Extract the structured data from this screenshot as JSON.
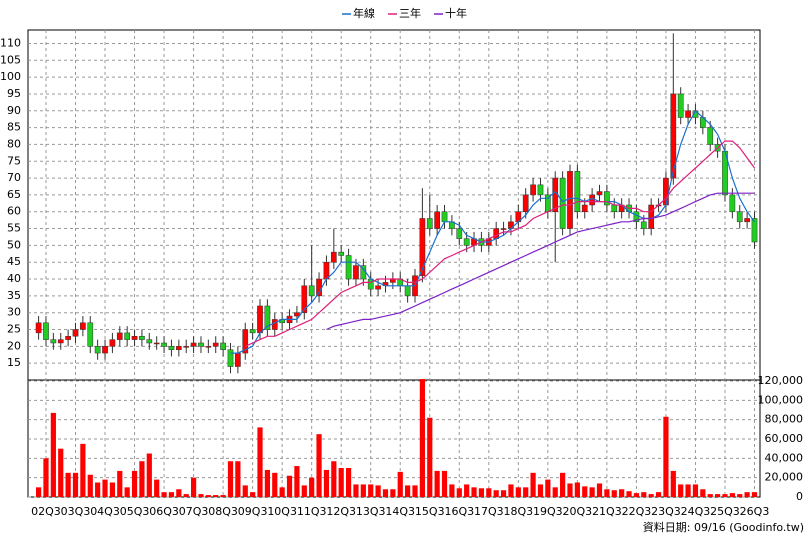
{
  "chart_data": {
    "type": "candlestick",
    "categories": [
      null,
      "02Q3",
      null,
      null,
      null,
      "03Q3",
      null,
      null,
      null,
      "04Q3",
      null,
      null,
      null,
      "05Q3",
      null,
      null,
      null,
      "06Q3",
      null,
      null,
      null,
      "07Q3",
      null,
      null,
      null,
      "08Q3",
      null,
      null,
      null,
      "09Q3",
      null,
      null,
      null,
      "10Q3",
      null,
      null,
      null,
      "11Q3",
      null,
      null,
      null,
      "12Q3",
      null,
      null,
      null,
      "13Q3",
      null,
      null,
      null,
      "14Q3",
      null,
      null,
      null,
      "15Q3",
      null,
      null,
      null,
      "16Q3",
      null,
      null,
      null,
      "17Q3",
      null,
      null,
      null,
      "18Q3",
      null,
      null,
      null,
      "19Q3",
      null,
      null,
      null,
      "20Q3",
      null,
      null,
      null,
      "21Q3",
      null,
      null,
      null,
      "22Q3",
      null,
      null,
      null,
      "23Q3",
      null,
      null,
      null,
      "24Q3",
      null,
      null,
      null,
      "25Q3",
      null,
      null,
      null,
      "26Q3"
    ],
    "open": [
      24,
      27,
      22,
      21,
      22,
      23,
      25,
      27,
      20,
      18,
      20,
      22,
      24,
      22,
      23,
      22,
      21,
      21,
      20,
      19,
      20,
      20,
      21,
      20,
      20,
      21,
      19,
      14,
      18,
      25,
      24,
      32,
      25,
      28,
      27,
      29,
      30,
      38,
      35,
      40,
      45,
      48,
      47,
      40,
      44,
      40,
      37,
      38,
      39,
      40,
      38,
      35,
      41,
      58,
      55,
      60,
      57,
      55,
      52,
      50,
      52,
      50,
      52,
      55,
      55,
      57,
      60,
      65,
      68,
      65,
      60,
      70,
      55,
      72,
      60,
      62,
      65,
      66,
      62,
      60,
      62,
      60,
      57,
      55,
      62,
      62,
      70,
      95,
      88,
      90,
      88,
      85,
      80,
      78,
      65,
      60,
      57,
      58
    ],
    "high": [
      29,
      29,
      24,
      24,
      25,
      27,
      29,
      29,
      22,
      22,
      24,
      26,
      26,
      25,
      25,
      24,
      23,
      23,
      22,
      22,
      22,
      23,
      23,
      22,
      23,
      23,
      21,
      20,
      27,
      27,
      34,
      34,
      30,
      30,
      31,
      32,
      40,
      50,
      42,
      47,
      55,
      50,
      49,
      46,
      46,
      42,
      40,
      41,
      42,
      42,
      40,
      43,
      67,
      65,
      62,
      62,
      59,
      57,
      54,
      54,
      54,
      54,
      57,
      57,
      59,
      62,
      67,
      70,
      70,
      67,
      72,
      72,
      74,
      74,
      64,
      67,
      68,
      68,
      64,
      64,
      64,
      62,
      59,
      64,
      64,
      72,
      113,
      97,
      92,
      92,
      90,
      87,
      82,
      80,
      67,
      62,
      60,
      60
    ],
    "low": [
      22,
      20,
      19,
      19,
      20,
      21,
      23,
      18,
      16,
      16,
      18,
      20,
      20,
      20,
      20,
      19,
      19,
      18,
      17,
      17,
      18,
      18,
      18,
      18,
      18,
      17,
      12,
      12,
      16,
      22,
      22,
      23,
      23,
      25,
      25,
      27,
      28,
      33,
      33,
      38,
      43,
      45,
      38,
      38,
      38,
      35,
      35,
      36,
      37,
      36,
      33,
      33,
      39,
      53,
      53,
      55,
      53,
      50,
      48,
      48,
      48,
      48,
      50,
      53,
      53,
      55,
      58,
      63,
      63,
      58,
      45,
      53,
      53,
      58,
      58,
      60,
      63,
      60,
      58,
      58,
      58,
      55,
      53,
      53,
      60,
      60,
      68,
      86,
      86,
      86,
      83,
      78,
      76,
      63,
      58,
      55,
      55,
      49
    ],
    "close": [
      27,
      22,
      21,
      22,
      23,
      25,
      27,
      20,
      18,
      20,
      22,
      24,
      22,
      23,
      22,
      21,
      21,
      20,
      19,
      20,
      20,
      21,
      20,
      20,
      21,
      19,
      14,
      18,
      25,
      24,
      32,
      25,
      28,
      27,
      29,
      30,
      38,
      35,
      40,
      45,
      48,
      47,
      40,
      44,
      40,
      37,
      38,
      39,
      40,
      38,
      35,
      41,
      58,
      55,
      60,
      57,
      55,
      52,
      50,
      52,
      50,
      52,
      55,
      55,
      57,
      60,
      65,
      68,
      65,
      60,
      70,
      55,
      72,
      60,
      62,
      65,
      66,
      62,
      60,
      62,
      60,
      57,
      55,
      62,
      62,
      70,
      95,
      88,
      90,
      88,
      85,
      80,
      78,
      65,
      60,
      57,
      58,
      51
    ],
    "up_color": "#ff0000",
    "down_color": "#22cc22",
    "series": [
      {
        "name": "年線",
        "color": "#1a6fd0",
        "values": [
          null,
          null,
          null,
          null,
          null,
          null,
          null,
          null,
          null,
          null,
          null,
          null,
          null,
          null,
          null,
          null,
          null,
          null,
          null,
          null,
          null,
          null,
          null,
          null,
          null,
          null,
          18,
          18,
          19,
          20,
          24,
          26,
          27,
          28,
          28,
          28,
          31,
          33,
          36,
          40,
          42,
          45,
          45,
          45,
          43,
          40,
          39,
          38,
          38,
          38,
          38,
          38,
          43,
          48,
          53,
          57,
          57,
          56,
          53,
          52,
          51,
          51,
          52,
          53,
          55,
          57,
          59,
          62,
          64,
          64,
          66,
          63,
          64,
          64,
          63,
          64,
          63,
          63,
          63,
          62,
          60,
          59,
          58,
          58,
          59,
          62,
          72,
          80,
          86,
          90,
          88,
          86,
          83,
          78,
          70,
          64,
          60,
          57
        ]
      },
      {
        "name": "三年",
        "color": "#e0207a",
        "values": [
          null,
          null,
          null,
          null,
          null,
          null,
          null,
          null,
          null,
          null,
          null,
          null,
          null,
          null,
          null,
          null,
          null,
          null,
          null,
          null,
          null,
          null,
          null,
          null,
          null,
          null,
          null,
          null,
          20,
          21,
          22,
          23,
          23,
          24,
          25,
          26,
          27,
          28,
          30,
          32,
          34,
          36,
          37,
          38,
          39,
          39,
          40,
          40,
          40,
          40,
          39,
          39,
          40,
          42,
          44,
          46,
          47,
          48,
          49,
          50,
          51,
          52,
          53,
          54,
          54,
          55,
          56,
          58,
          59,
          60,
          61,
          62,
          62,
          63,
          63,
          63,
          63,
          63,
          62,
          62,
          61,
          61,
          60,
          60,
          62,
          64,
          67,
          69,
          71,
          73,
          75,
          77,
          79,
          81,
          81,
          79,
          76,
          73
        ]
      },
      {
        "name": "十年",
        "color": "#7d1fc7",
        "values": [
          null,
          null,
          null,
          null,
          null,
          null,
          null,
          null,
          null,
          null,
          null,
          null,
          null,
          null,
          null,
          null,
          null,
          null,
          null,
          null,
          null,
          null,
          null,
          null,
          null,
          null,
          null,
          null,
          null,
          null,
          null,
          null,
          null,
          null,
          null,
          null,
          null,
          null,
          null,
          25,
          26,
          26.5,
          27,
          27.5,
          28,
          28,
          28.5,
          29,
          29.5,
          30,
          31,
          32,
          33,
          34,
          35,
          36,
          37,
          38,
          39,
          40,
          41,
          42,
          43,
          44,
          45,
          46,
          47,
          48,
          49,
          50,
          51,
          52,
          53,
          54,
          54.5,
          55,
          55.5,
          56,
          56.5,
          57,
          57,
          57.5,
          58,
          58,
          58.5,
          59,
          60,
          61,
          62,
          63,
          64,
          65,
          65.5,
          65.5,
          65.5,
          65.5,
          65.5,
          65.5
        ]
      }
    ],
    "volume": {
      "color": "#ff0000",
      "values": [
        10000,
        40000,
        87000,
        50000,
        25000,
        25000,
        55000,
        23000,
        15000,
        18000,
        15000,
        27000,
        10000,
        27000,
        37000,
        45000,
        18000,
        5000,
        5000,
        8000,
        3000,
        20000,
        3000,
        2000,
        2000,
        2000,
        37000,
        37000,
        12000,
        5000,
        72000,
        28000,
        25000,
        10000,
        22000,
        32000,
        12000,
        20000,
        65000,
        28000,
        37000,
        30000,
        30000,
        13000,
        13000,
        13000,
        12000,
        8000,
        8000,
        26000,
        12000,
        12000,
        122000,
        82000,
        27000,
        27000,
        13000,
        9000,
        13000,
        10000,
        9000,
        9000,
        7000,
        7000,
        13000,
        10000,
        10000,
        25000,
        13000,
        18000,
        10000,
        25000,
        14000,
        15000,
        11000,
        10000,
        14000,
        8000,
        7000,
        8000,
        6000,
        4000,
        5000,
        3000,
        5000,
        83000,
        27000,
        13000,
        13000,
        13000,
        8000,
        3000,
        3000,
        3000,
        4000,
        3000,
        5000,
        5000
      ]
    },
    "ylim": [
      10,
      114
    ],
    "yticks": [
      15,
      20,
      25,
      30,
      35,
      40,
      45,
      50,
      55,
      60,
      65,
      70,
      75,
      80,
      85,
      90,
      95,
      100,
      105,
      110
    ],
    "y2lim": [
      0,
      120000
    ],
    "y2ticks": [
      0,
      {
        "value": 20000,
        "label": "20,000"
      },
      {
        "value": 40000,
        "label": "40,000"
      },
      {
        "value": 60000,
        "label": "60,000"
      },
      {
        "value": 80000,
        "label": "80,000"
      },
      {
        "value": 100000,
        "label": "100,000"
      },
      {
        "value": 120000,
        "label": "120,000"
      }
    ],
    "grid": true,
    "source": "資料日期: 09/16  (Goodinfo.tw)"
  }
}
